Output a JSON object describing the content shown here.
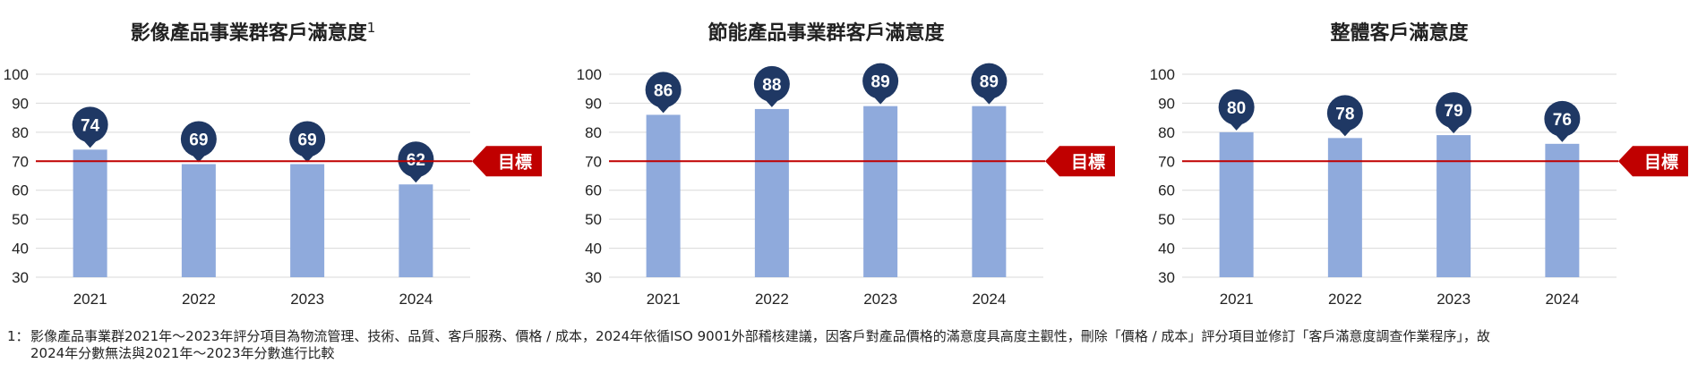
{
  "target_label": "目標",
  "chart_data": [
    {
      "type": "bar",
      "title": "影像產品事業群客戶滿意度",
      "title_sup": "1",
      "categories": [
        "2021",
        "2022",
        "2023",
        "2024"
      ],
      "values": [
        74,
        69,
        69,
        62
      ],
      "ylim": [
        30,
        100
      ],
      "yticks": [
        30,
        40,
        50,
        60,
        70,
        80,
        90,
        100
      ],
      "target": 70,
      "grid": true,
      "colors": {
        "bar": "#8faadc",
        "label_pin": "#1f3864",
        "target": "#c00000"
      }
    },
    {
      "type": "bar",
      "title": "節能產品事業群客戶滿意度",
      "title_sup": "",
      "categories": [
        "2021",
        "2022",
        "2023",
        "2024"
      ],
      "values": [
        86,
        88,
        89,
        89
      ],
      "ylim": [
        30,
        100
      ],
      "yticks": [
        30,
        40,
        50,
        60,
        70,
        80,
        90,
        100
      ],
      "target": 70,
      "grid": true,
      "colors": {
        "bar": "#8faadc",
        "label_pin": "#1f3864",
        "target": "#c00000"
      }
    },
    {
      "type": "bar",
      "title": "整體客戶滿意度",
      "title_sup": "",
      "categories": [
        "2021",
        "2022",
        "2023",
        "2024"
      ],
      "values": [
        80,
        78,
        79,
        76
      ],
      "ylim": [
        30,
        100
      ],
      "yticks": [
        30,
        40,
        50,
        60,
        70,
        80,
        90,
        100
      ],
      "target": 70,
      "grid": true,
      "colors": {
        "bar": "#8faadc",
        "label_pin": "#1f3864",
        "target": "#c00000"
      }
    }
  ],
  "footnote": {
    "marker": "1：",
    "line1": "影像產品事業群2021年～2023年評分項目為物流管理、技術、品質、客戶服務、價格 / 成本，2024年依循ISO 9001外部稽核建議，因客戶對產品價格的滿意度具高度主觀性，刪除「價格 / 成本」評分項目並修訂「客戶滿意度調查作業程序」，故",
    "line2": "2024年分數無法與2021年～2023年分數進行比較"
  }
}
